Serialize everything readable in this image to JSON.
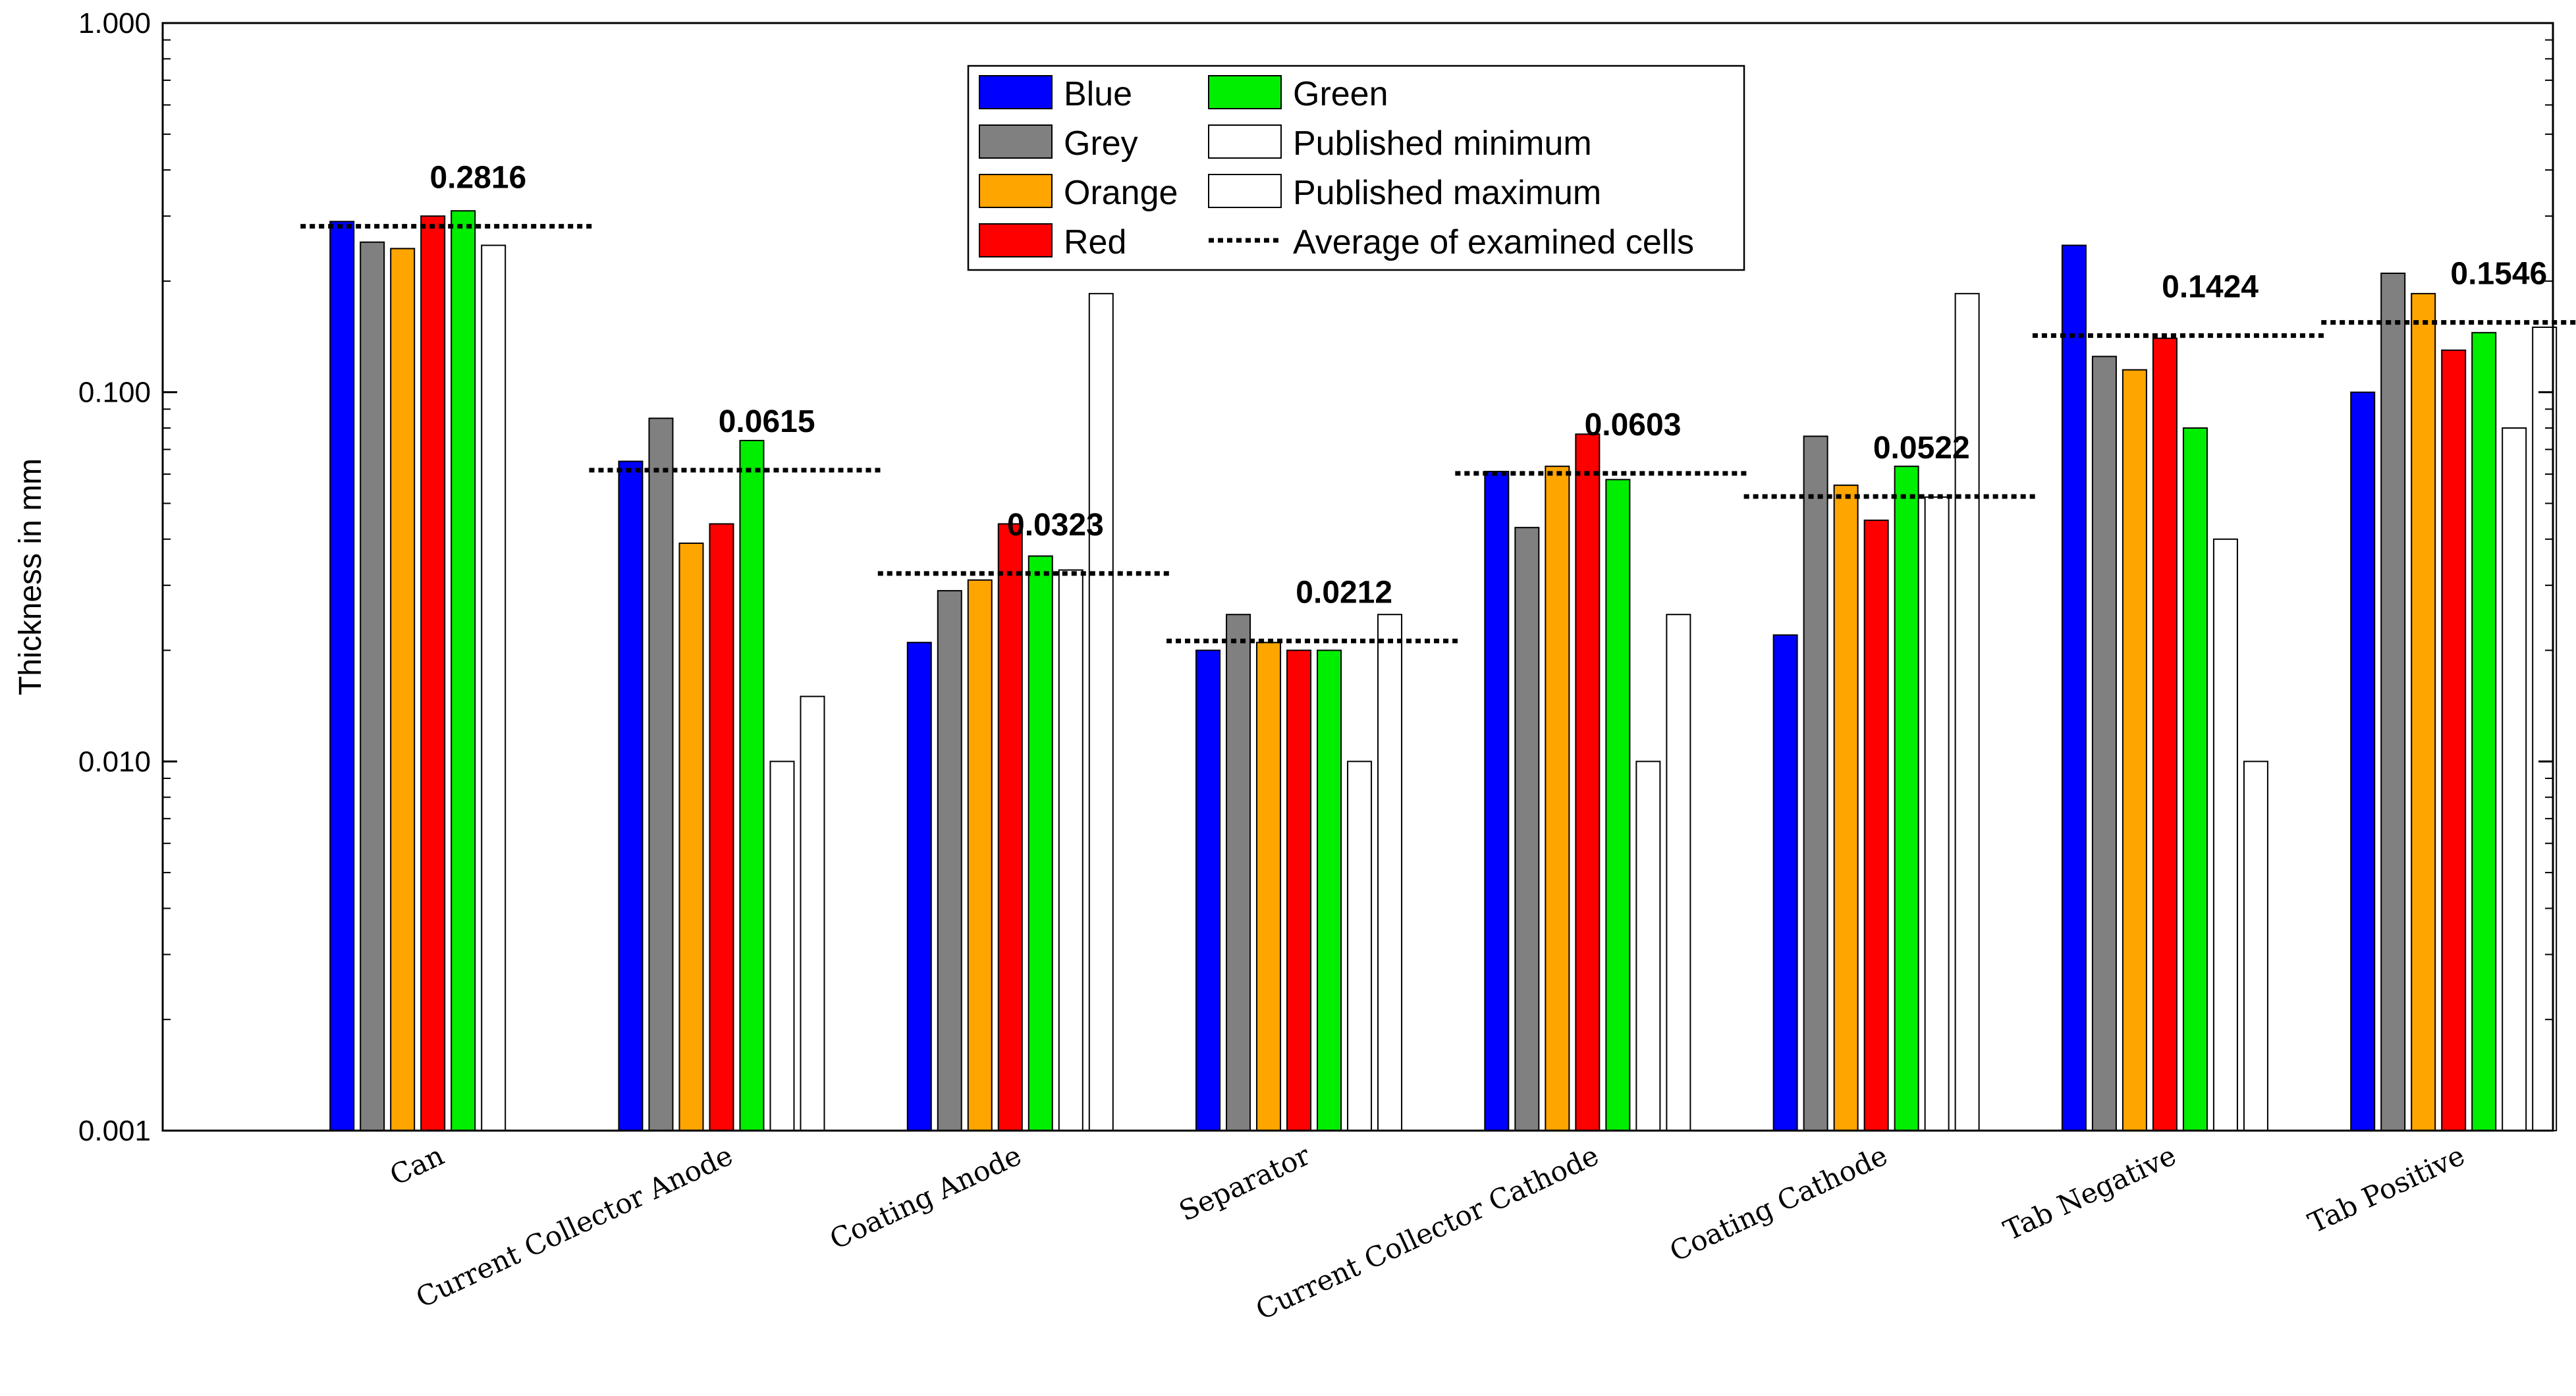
{
  "chart_data": {
    "type": "bar",
    "title": "",
    "xlabel": "",
    "ylabel": "Thickness in mm",
    "yscale": "log",
    "ylim": [
      0.001,
      1.0
    ],
    "yticks": [
      0.001,
      0.01,
      0.1,
      1.0
    ],
    "ytick_labels": [
      "0.001",
      "0.010",
      "0.100",
      "1.000"
    ],
    "grid": false,
    "legend_position": "top-center",
    "categories": [
      "Can",
      "Current Collector Anode",
      "Coating Anode",
      "Separator",
      "Current Collector Cathode",
      "Coating Cathode",
      "Tab Negative",
      "Tab Positive"
    ],
    "series": [
      {
        "name": "Blue",
        "color": "#0000ff",
        "values": [
          0.29,
          0.065,
          0.021,
          0.02,
          0.061,
          0.022,
          0.25,
          0.1
        ]
      },
      {
        "name": "Grey",
        "color": "#808080",
        "values": [
          0.255,
          0.085,
          0.029,
          0.025,
          0.043,
          0.076,
          0.125,
          0.21
        ]
      },
      {
        "name": "Orange",
        "color": "#ffa500",
        "values": [
          0.245,
          0.039,
          0.031,
          0.021,
          0.063,
          0.056,
          0.115,
          0.185
        ]
      },
      {
        "name": "Red",
        "color": "#ff0000",
        "values": [
          0.3,
          0.044,
          0.044,
          0.02,
          0.077,
          0.045,
          0.14,
          0.13
        ]
      },
      {
        "name": "Green",
        "color": "#00ee00",
        "values": [
          0.31,
          0.074,
          0.036,
          0.02,
          0.058,
          0.063,
          0.08,
          0.145
        ]
      },
      {
        "name": "Published minimum",
        "color": "#ffffff",
        "values": [
          0.25,
          0.01,
          0.033,
          0.01,
          0.01,
          0.052,
          0.04,
          0.08
        ]
      },
      {
        "name": "Published maximum",
        "color": "#ffffff",
        "values": [
          null,
          0.015,
          0.185,
          0.025,
          0.025,
          0.185,
          0.01,
          0.15
        ]
      }
    ],
    "average": {
      "name": "Average of examined cells",
      "values": [
        0.2816,
        0.0615,
        0.0323,
        0.0212,
        0.0603,
        0.0522,
        0.1424,
        0.1546
      ],
      "labels": [
        "0.2816",
        "0.0615",
        "0.0323",
        "0.0212",
        "0.0603",
        "0.0522",
        "0.1424",
        "0.1546"
      ]
    },
    "legend": {
      "entries": [
        "Blue",
        "Grey",
        "Orange",
        "Red",
        "Green",
        "Published minimum",
        "Published maximum",
        "Average of examined cells"
      ]
    }
  }
}
